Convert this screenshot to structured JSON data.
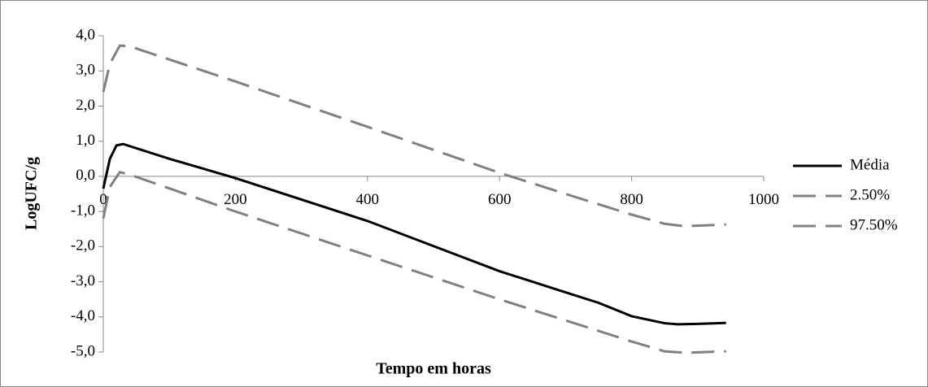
{
  "chart_data": {
    "type": "line",
    "x_label": "Tempo em horas",
    "y_label": "LogUFC/g",
    "xlim": [
      0,
      1000
    ],
    "xticks": [
      0,
      200,
      400,
      600,
      800,
      1000
    ],
    "ylim": [
      -5,
      4
    ],
    "yticks": [
      {
        "value": -5,
        "label": "-5,0"
      },
      {
        "value": -4,
        "label": "-4,0"
      },
      {
        "value": -3,
        "label": "-3,0"
      },
      {
        "value": -2,
        "label": "-2,0"
      },
      {
        "value": -1,
        "label": "-1,0"
      },
      {
        "value": 0,
        "label": "0,0"
      },
      {
        "value": 1,
        "label": "1,0"
      },
      {
        "value": 2,
        "label": "2,0"
      },
      {
        "value": 3,
        "label": "3,0"
      },
      {
        "value": 4,
        "label": "4,0"
      }
    ],
    "grid": false,
    "legend": "right",
    "series": [
      {
        "name": "Média",
        "color": "#000000",
        "dashed": false,
        "x": [
          0,
          10,
          20,
          30,
          100,
          200,
          400,
          600,
          700,
          750,
          800,
          850,
          870,
          900,
          943
        ],
        "values": [
          -0.35,
          0.5,
          0.88,
          0.92,
          0.5,
          -0.05,
          -1.27,
          -2.7,
          -3.3,
          -3.6,
          -3.98,
          -4.18,
          -4.21,
          -4.2,
          -4.17
        ]
      },
      {
        "name": "2.50%",
        "color": "#808080",
        "dashed": true,
        "x": [
          0,
          10,
          25,
          40,
          200,
          400,
          600,
          700,
          800,
          850,
          880,
          943
        ],
        "values": [
          -1.2,
          -0.3,
          0.12,
          0.05,
          -1.0,
          -2.25,
          -3.5,
          -4.1,
          -4.7,
          -4.98,
          -5.02,
          -4.98
        ]
      },
      {
        "name": "97.50%",
        "color": "#808080",
        "dashed": true,
        "x": [
          0,
          10,
          25,
          40,
          200,
          400,
          600,
          700,
          800,
          850,
          880,
          943
        ],
        "values": [
          2.4,
          3.2,
          3.72,
          3.7,
          2.7,
          1.41,
          0.1,
          -0.5,
          -1.09,
          -1.35,
          -1.42,
          -1.37
        ]
      }
    ]
  }
}
